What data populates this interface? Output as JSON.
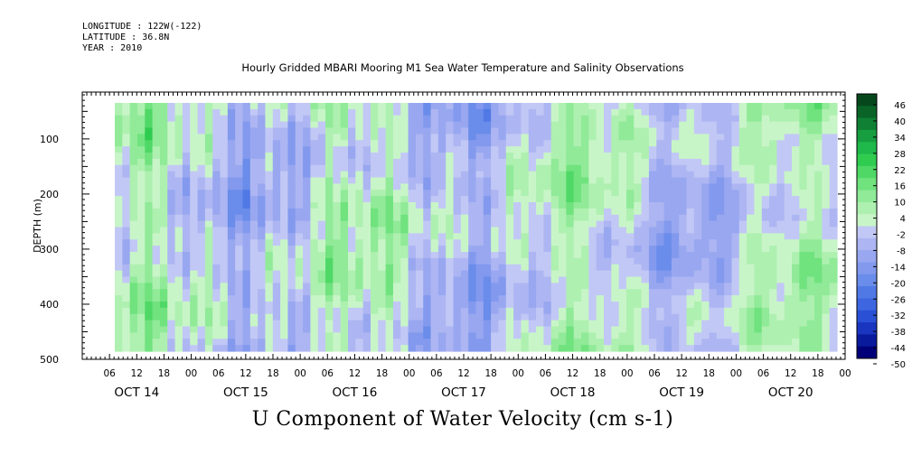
{
  "header": {
    "longitude": "LONGITUDE : 122W(-122)",
    "latitude": "LATITUDE : 36.8N",
    "year": "YEAR : 2010"
  },
  "chart_data": {
    "type": "heatmap",
    "title": "Hourly Gridded MBARI Mooring M1 Sea Water Temperature and Salinity Observations",
    "variable_title": "U Component of Water Velocity (cm s-1)",
    "ylabel": "DEPTH (m)",
    "xlabel": "",
    "ylim": [
      500,
      15
    ],
    "yticks": [
      100,
      200,
      300,
      400,
      500
    ],
    "y_direction": "depth increases downward",
    "xlim_hours": [
      0,
      168
    ],
    "x_hour_ticks": [
      "06",
      "12",
      "18",
      "00",
      "06",
      "12",
      "18",
      "00",
      "06",
      "12",
      "18",
      "00",
      "06",
      "12",
      "18",
      "00",
      "06",
      "12",
      "18",
      "00",
      "06",
      "12",
      "18",
      "00",
      "06",
      "12",
      "18",
      "00"
    ],
    "x_day_labels": [
      "OCT 14",
      "OCT 15",
      "OCT 16",
      "OCT 17",
      "OCT 18",
      "OCT 19",
      "OCT 20"
    ],
    "data_extent": {
      "start": "OCT 14 07h",
      "end": "OCT 20 23h",
      "depth_top": 16,
      "depth_bottom": 485
    },
    "colorbar_levels": [
      46,
      40,
      34,
      28,
      22,
      16,
      10,
      4,
      -2,
      -8,
      -14,
      -20,
      -26,
      -32,
      -38,
      -44,
      -50
    ],
    "colorbar_range": [
      -50,
      50
    ],
    "colors": {
      "strong_negative": "#000080",
      "negative": "#3a5ad6",
      "weak_negative": "#a8b2f0",
      "weak_positive": "#a8f0a8",
      "positive": "#22cc44",
      "strong_positive": "#0a4a1a"
    }
  }
}
